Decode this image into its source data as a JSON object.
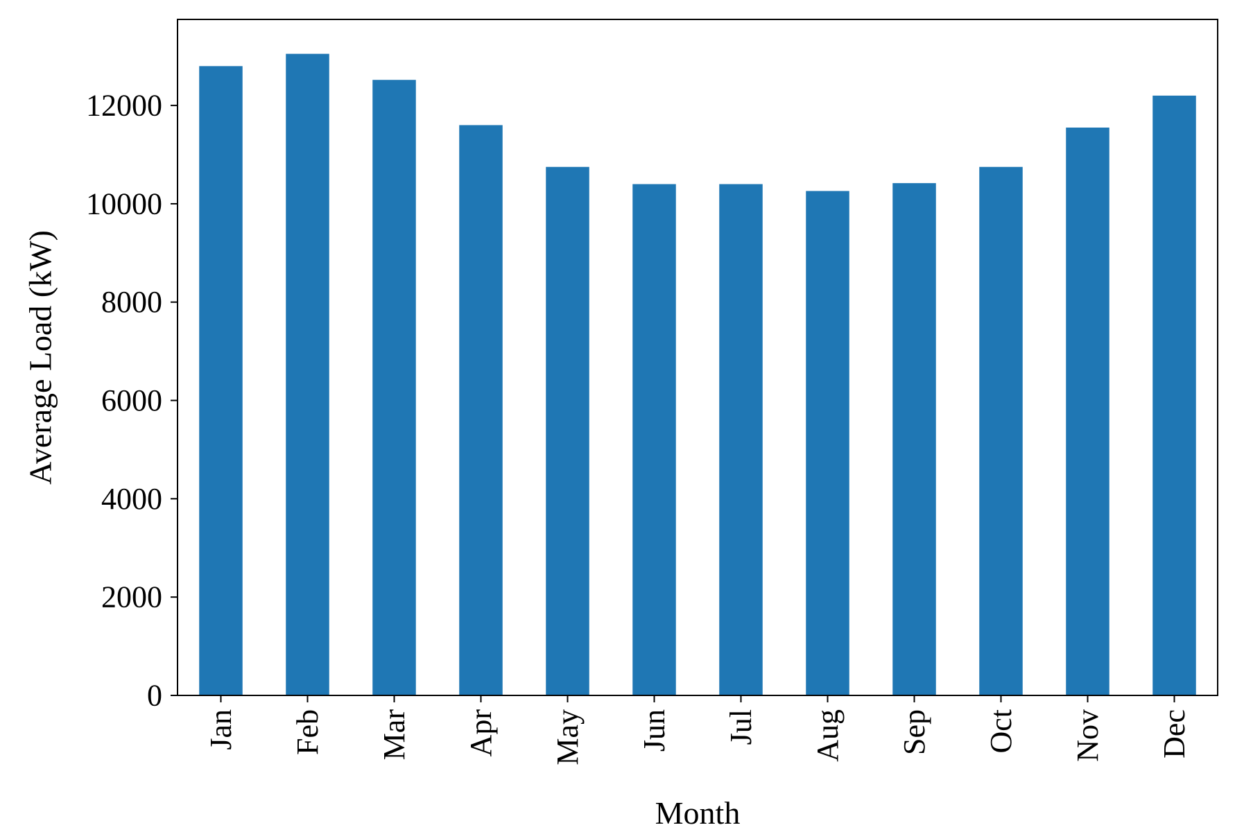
{
  "chart_data": {
    "type": "bar",
    "title": "",
    "xlabel": "Month",
    "ylabel": "Average Load (kW)",
    "categories": [
      "Jan",
      "Feb",
      "Mar",
      "Apr",
      "May",
      "Jun",
      "Jul",
      "Aug",
      "Sep",
      "Oct",
      "Nov",
      "Dec"
    ],
    "values": [
      12800,
      13050,
      12520,
      11600,
      10750,
      10400,
      10400,
      10260,
      10420,
      10750,
      11550,
      12200
    ],
    "yticks": [
      "0",
      "2000",
      "4000",
      "6000",
      "8000",
      "10000",
      "12000"
    ],
    "ylim": [
      0,
      13750
    ],
    "grid": false,
    "legend": "none",
    "bar_color": "#1f77b4"
  }
}
